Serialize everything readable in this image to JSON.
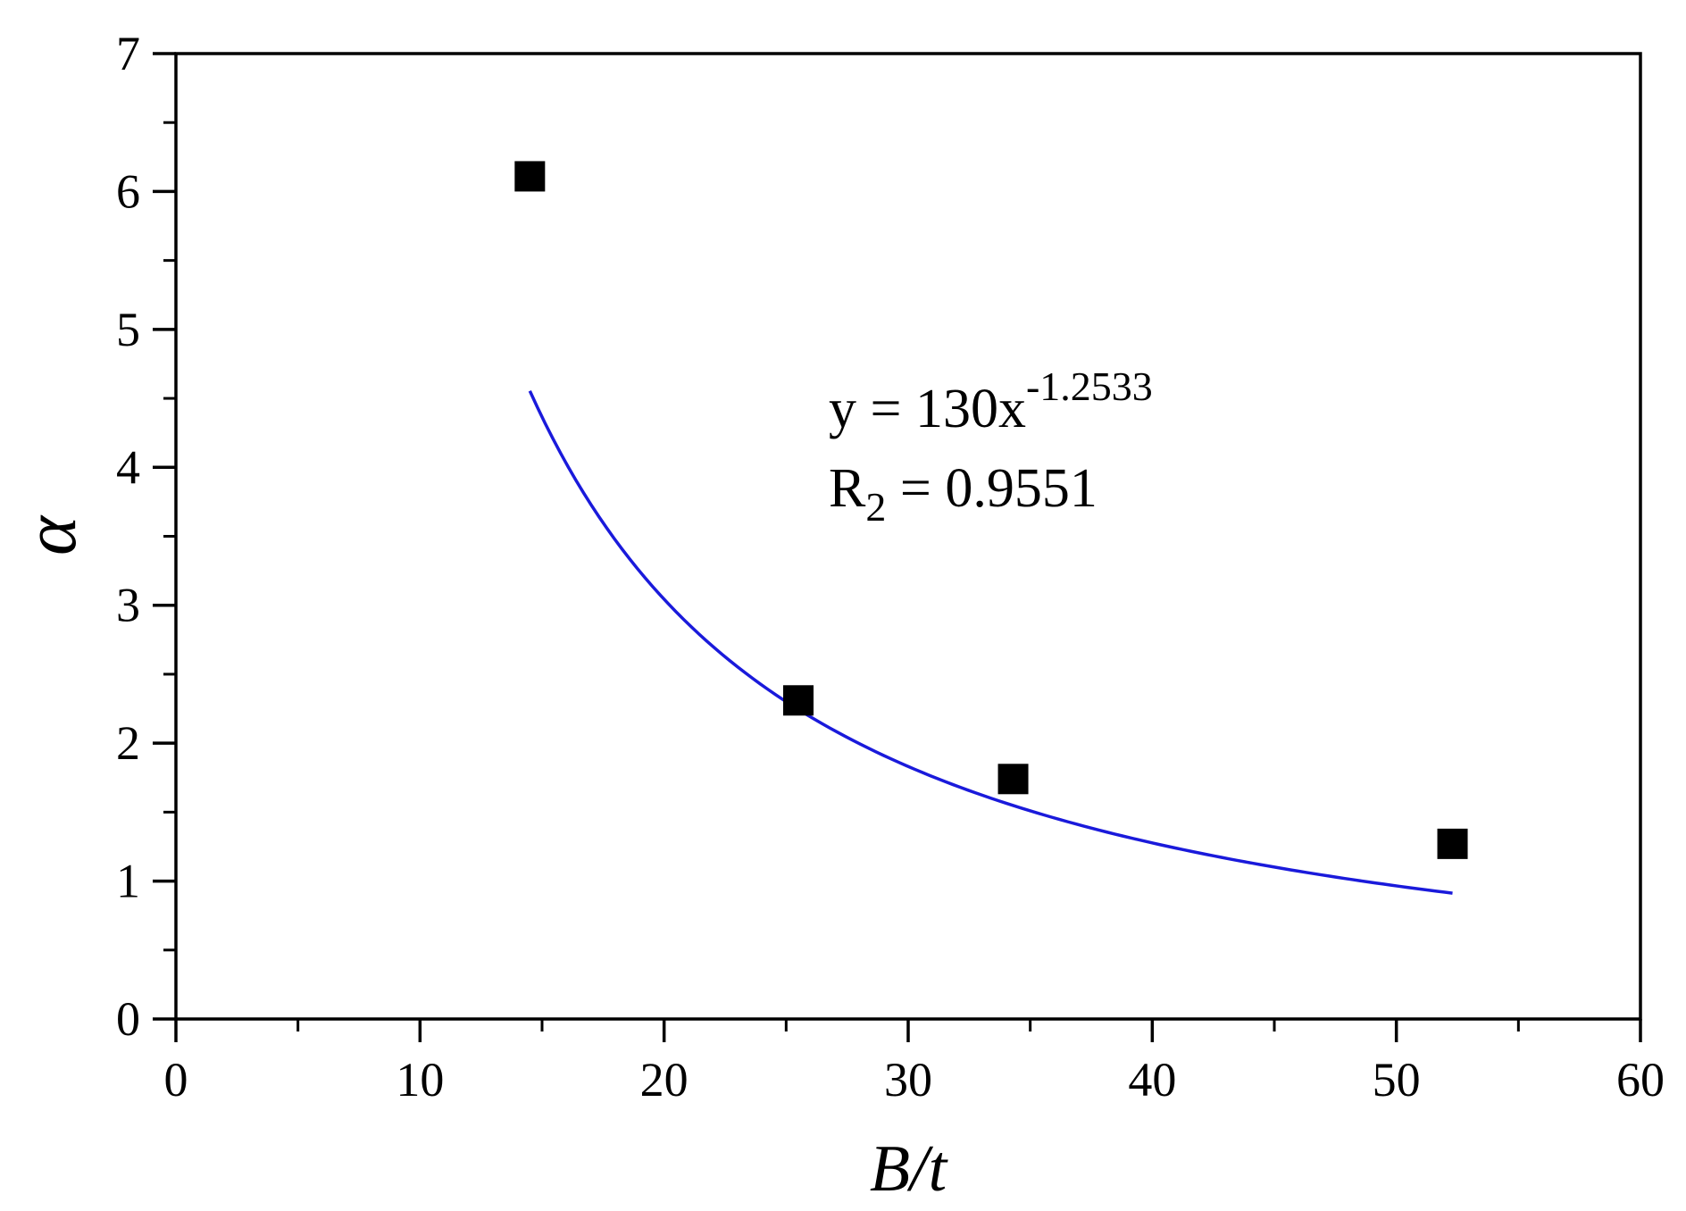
{
  "chart_data": {
    "type": "scatter",
    "title": "",
    "xlabel": "B/t",
    "ylabel": "α",
    "xlim": [
      0,
      60
    ],
    "ylim": [
      0,
      7
    ],
    "x_ticks": [
      0,
      10,
      20,
      30,
      40,
      50,
      60
    ],
    "y_ticks": [
      0,
      1,
      2,
      3,
      4,
      5,
      6,
      7
    ],
    "x_tick_labels": [
      "0",
      "10",
      "20",
      "30",
      "40",
      "50",
      "60"
    ],
    "y_tick_labels": [
      "0",
      "1",
      "2",
      "3",
      "4",
      "5",
      "6",
      "7"
    ],
    "grid": false,
    "series": [
      {
        "type": "scatter",
        "marker": "square",
        "color": "#000000",
        "x": [
          14.5,
          25.5,
          34.3,
          52.3
        ],
        "y": [
          6.11,
          2.31,
          1.74,
          1.27
        ]
      },
      {
        "type": "line",
        "fit": "power",
        "color": "#1a1adb",
        "coefficient": 130,
        "exponent": -1.2533,
        "x_range": [
          14.5,
          52.3
        ]
      }
    ],
    "annotations": {
      "equation_base": "y = 130x",
      "equation_exponent": "-1.2533",
      "r2_label": "R",
      "r2_subscript": "2",
      "r2_value": " = 0.9551"
    }
  }
}
